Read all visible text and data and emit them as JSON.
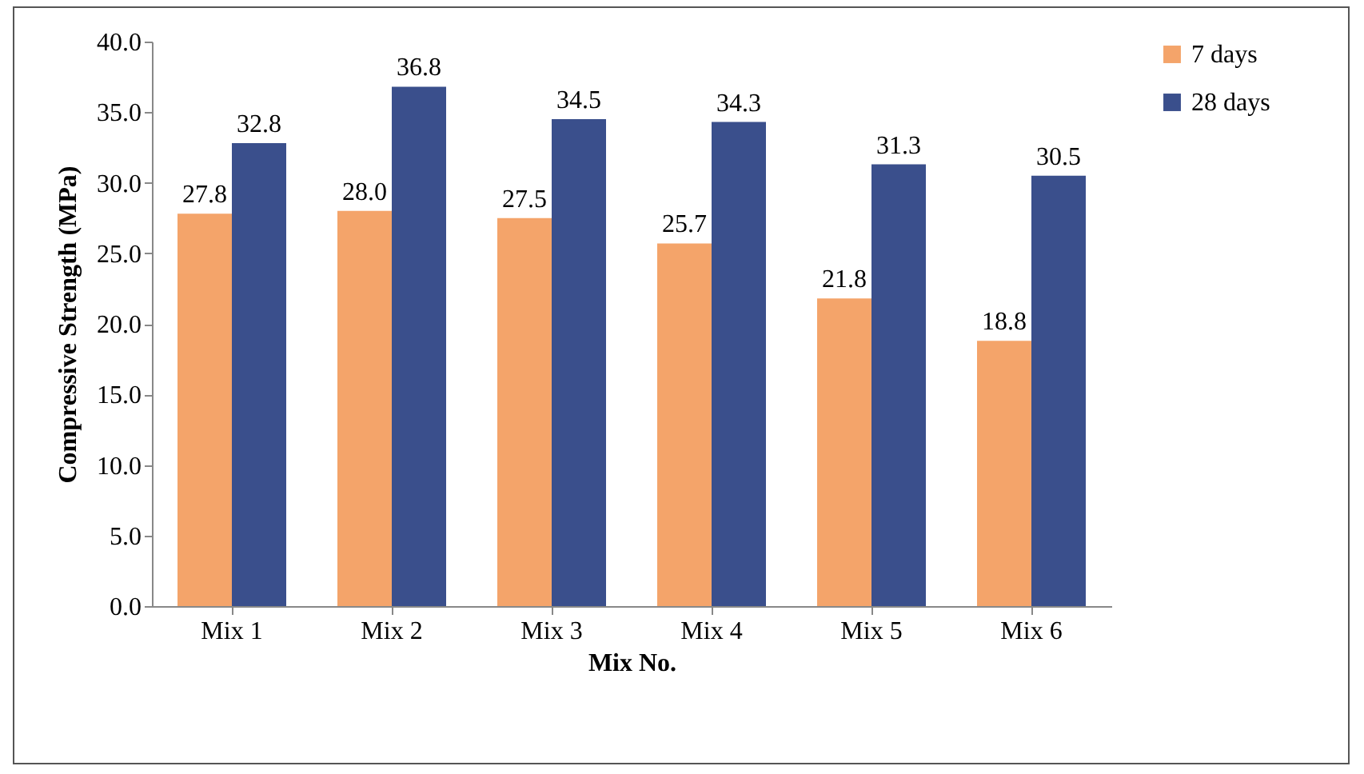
{
  "chart_data": {
    "type": "bar",
    "xlabel": "Mix No.",
    "ylabel": "Compressive Strength (MPa)",
    "categories": [
      "Mix 1",
      "Mix 2",
      "Mix 3",
      "Mix 4",
      "Mix 5",
      "Mix 6"
    ],
    "series": [
      {
        "name": "7 days",
        "color": "#f4a46a",
        "values": [
          27.8,
          28.0,
          27.5,
          25.7,
          21.8,
          18.8
        ],
        "value_labels": [
          "27.8",
          "28.0",
          "27.5",
          "25.7",
          "21.8",
          "18.8"
        ]
      },
      {
        "name": "28 days",
        "color": "#3a4f8c",
        "values": [
          32.8,
          36.8,
          34.5,
          34.3,
          31.3,
          30.5
        ],
        "value_labels": [
          "32.8",
          "36.8",
          "34.5",
          "34.3",
          "31.3",
          "30.5"
        ]
      }
    ],
    "ylim": [
      0,
      40
    ],
    "yticks": [
      {
        "value": 0,
        "label": "0.0"
      },
      {
        "value": 5,
        "label": "5.0"
      },
      {
        "value": 10,
        "label": "10.0"
      },
      {
        "value": 15,
        "label": "15.0"
      },
      {
        "value": 20,
        "label": "20.0"
      },
      {
        "value": 25,
        "label": "25.0"
      },
      {
        "value": 30,
        "label": "30.0"
      },
      {
        "value": 35,
        "label": "35.0"
      },
      {
        "value": 40,
        "label": "40.0"
      }
    ],
    "grid": false,
    "legend": "right"
  }
}
